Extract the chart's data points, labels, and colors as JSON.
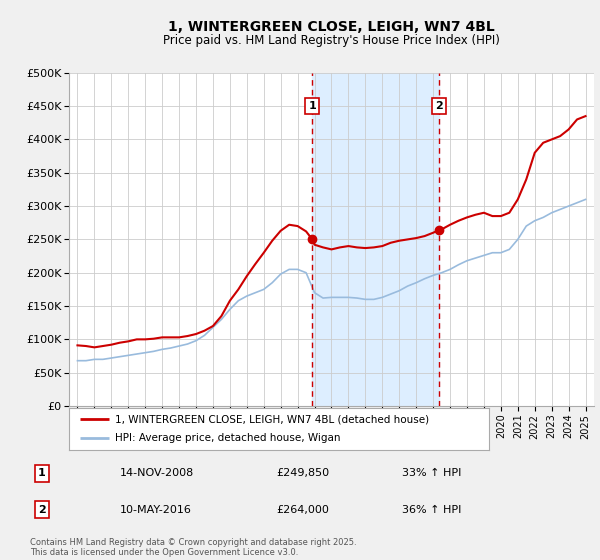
{
  "title": "1, WINTERGREEN CLOSE, LEIGH, WN7 4BL",
  "subtitle": "Price paid vs. HM Land Registry's House Price Index (HPI)",
  "ylim": [
    0,
    500000
  ],
  "yticks": [
    0,
    50000,
    100000,
    150000,
    200000,
    250000,
    300000,
    350000,
    400000,
    450000,
    500000
  ],
  "ytick_labels": [
    "£0",
    "£50K",
    "£100K",
    "£150K",
    "£200K",
    "£250K",
    "£300K",
    "£350K",
    "£400K",
    "£450K",
    "£500K"
  ],
  "xlim_start": 1994.5,
  "xlim_end": 2025.5,
  "xticks": [
    1995,
    1996,
    1997,
    1998,
    1999,
    2000,
    2001,
    2002,
    2003,
    2004,
    2005,
    2006,
    2007,
    2008,
    2009,
    2010,
    2011,
    2012,
    2013,
    2014,
    2015,
    2016,
    2017,
    2018,
    2019,
    2020,
    2021,
    2022,
    2023,
    2024,
    2025
  ],
  "bg_color": "#f0f0f0",
  "plot_bg_color": "#ffffff",
  "grid_color": "#cccccc",
  "red_line_color": "#cc0000",
  "blue_line_color": "#99bbdd",
  "marker_color": "#cc0000",
  "vline_color": "#cc0000",
  "vshade_color": "#ddeeff",
  "event1_x": 2008.87,
  "event2_x": 2016.36,
  "event1_label": "1",
  "event2_label": "2",
  "event1_price": 249850,
  "event2_price": 264000,
  "event1_date": "14-NOV-2008",
  "event2_date": "10-MAY-2016",
  "event1_hpi_pct": "33% ↑ HPI",
  "event2_hpi_pct": "36% ↑ HPI",
  "legend_line1": "1, WINTERGREEN CLOSE, LEIGH, WN7 4BL (detached house)",
  "legend_line2": "HPI: Average price, detached house, Wigan",
  "footer": "Contains HM Land Registry data © Crown copyright and database right 2025.\nThis data is licensed under the Open Government Licence v3.0.",
  "red_x": [
    1995.0,
    1995.5,
    1996.0,
    1996.5,
    1997.0,
    1997.5,
    1998.0,
    1998.5,
    1999.0,
    1999.5,
    2000.0,
    2000.5,
    2001.0,
    2001.5,
    2002.0,
    2002.5,
    2003.0,
    2003.5,
    2004.0,
    2004.5,
    2005.0,
    2005.5,
    2006.0,
    2006.5,
    2007.0,
    2007.5,
    2008.0,
    2008.5,
    2008.87,
    2009.0,
    2009.5,
    2010.0,
    2010.5,
    2011.0,
    2011.5,
    2012.0,
    2012.5,
    2013.0,
    2013.5,
    2014.0,
    2014.5,
    2015.0,
    2015.5,
    2016.0,
    2016.36,
    2016.5,
    2017.0,
    2017.5,
    2018.0,
    2018.5,
    2019.0,
    2019.5,
    2020.0,
    2020.5,
    2021.0,
    2021.5,
    2022.0,
    2022.5,
    2023.0,
    2023.5,
    2024.0,
    2024.5,
    2025.0
  ],
  "red_y": [
    91000,
    90000,
    88000,
    90000,
    92000,
    95000,
    97000,
    100000,
    100000,
    101000,
    103000,
    103000,
    103000,
    105000,
    108000,
    113000,
    120000,
    135000,
    158000,
    175000,
    195000,
    213000,
    230000,
    248000,
    263000,
    272000,
    270000,
    262000,
    249850,
    242000,
    238000,
    235000,
    238000,
    240000,
    238000,
    237000,
    238000,
    240000,
    245000,
    248000,
    250000,
    252000,
    255000,
    260000,
    264000,
    265000,
    272000,
    278000,
    283000,
    287000,
    290000,
    285000,
    285000,
    290000,
    310000,
    340000,
    380000,
    395000,
    400000,
    405000,
    415000,
    430000,
    435000
  ],
  "blue_x": [
    1995.0,
    1995.5,
    1996.0,
    1996.5,
    1997.0,
    1997.5,
    1998.0,
    1998.5,
    1999.0,
    1999.5,
    2000.0,
    2000.5,
    2001.0,
    2001.5,
    2002.0,
    2002.5,
    2003.0,
    2003.5,
    2004.0,
    2004.5,
    2005.0,
    2005.5,
    2006.0,
    2006.5,
    2007.0,
    2007.5,
    2008.0,
    2008.5,
    2009.0,
    2009.5,
    2010.0,
    2010.5,
    2011.0,
    2011.5,
    2012.0,
    2012.5,
    2013.0,
    2013.5,
    2014.0,
    2014.5,
    2015.0,
    2015.5,
    2016.0,
    2016.5,
    2017.0,
    2017.5,
    2018.0,
    2018.5,
    2019.0,
    2019.5,
    2020.0,
    2020.5,
    2021.0,
    2021.5,
    2022.0,
    2022.5,
    2023.0,
    2023.5,
    2024.0,
    2024.5,
    2025.0
  ],
  "blue_y": [
    68000,
    68000,
    70000,
    70000,
    72000,
    74000,
    76000,
    78000,
    80000,
    82000,
    85000,
    87000,
    90000,
    93000,
    98000,
    106000,
    118000,
    130000,
    145000,
    158000,
    165000,
    170000,
    175000,
    185000,
    198000,
    205000,
    205000,
    200000,
    170000,
    162000,
    163000,
    163000,
    163000,
    162000,
    160000,
    160000,
    163000,
    168000,
    173000,
    180000,
    185000,
    191000,
    196000,
    200000,
    205000,
    212000,
    218000,
    222000,
    226000,
    230000,
    230000,
    235000,
    250000,
    270000,
    278000,
    283000,
    290000,
    295000,
    300000,
    305000,
    310000
  ]
}
